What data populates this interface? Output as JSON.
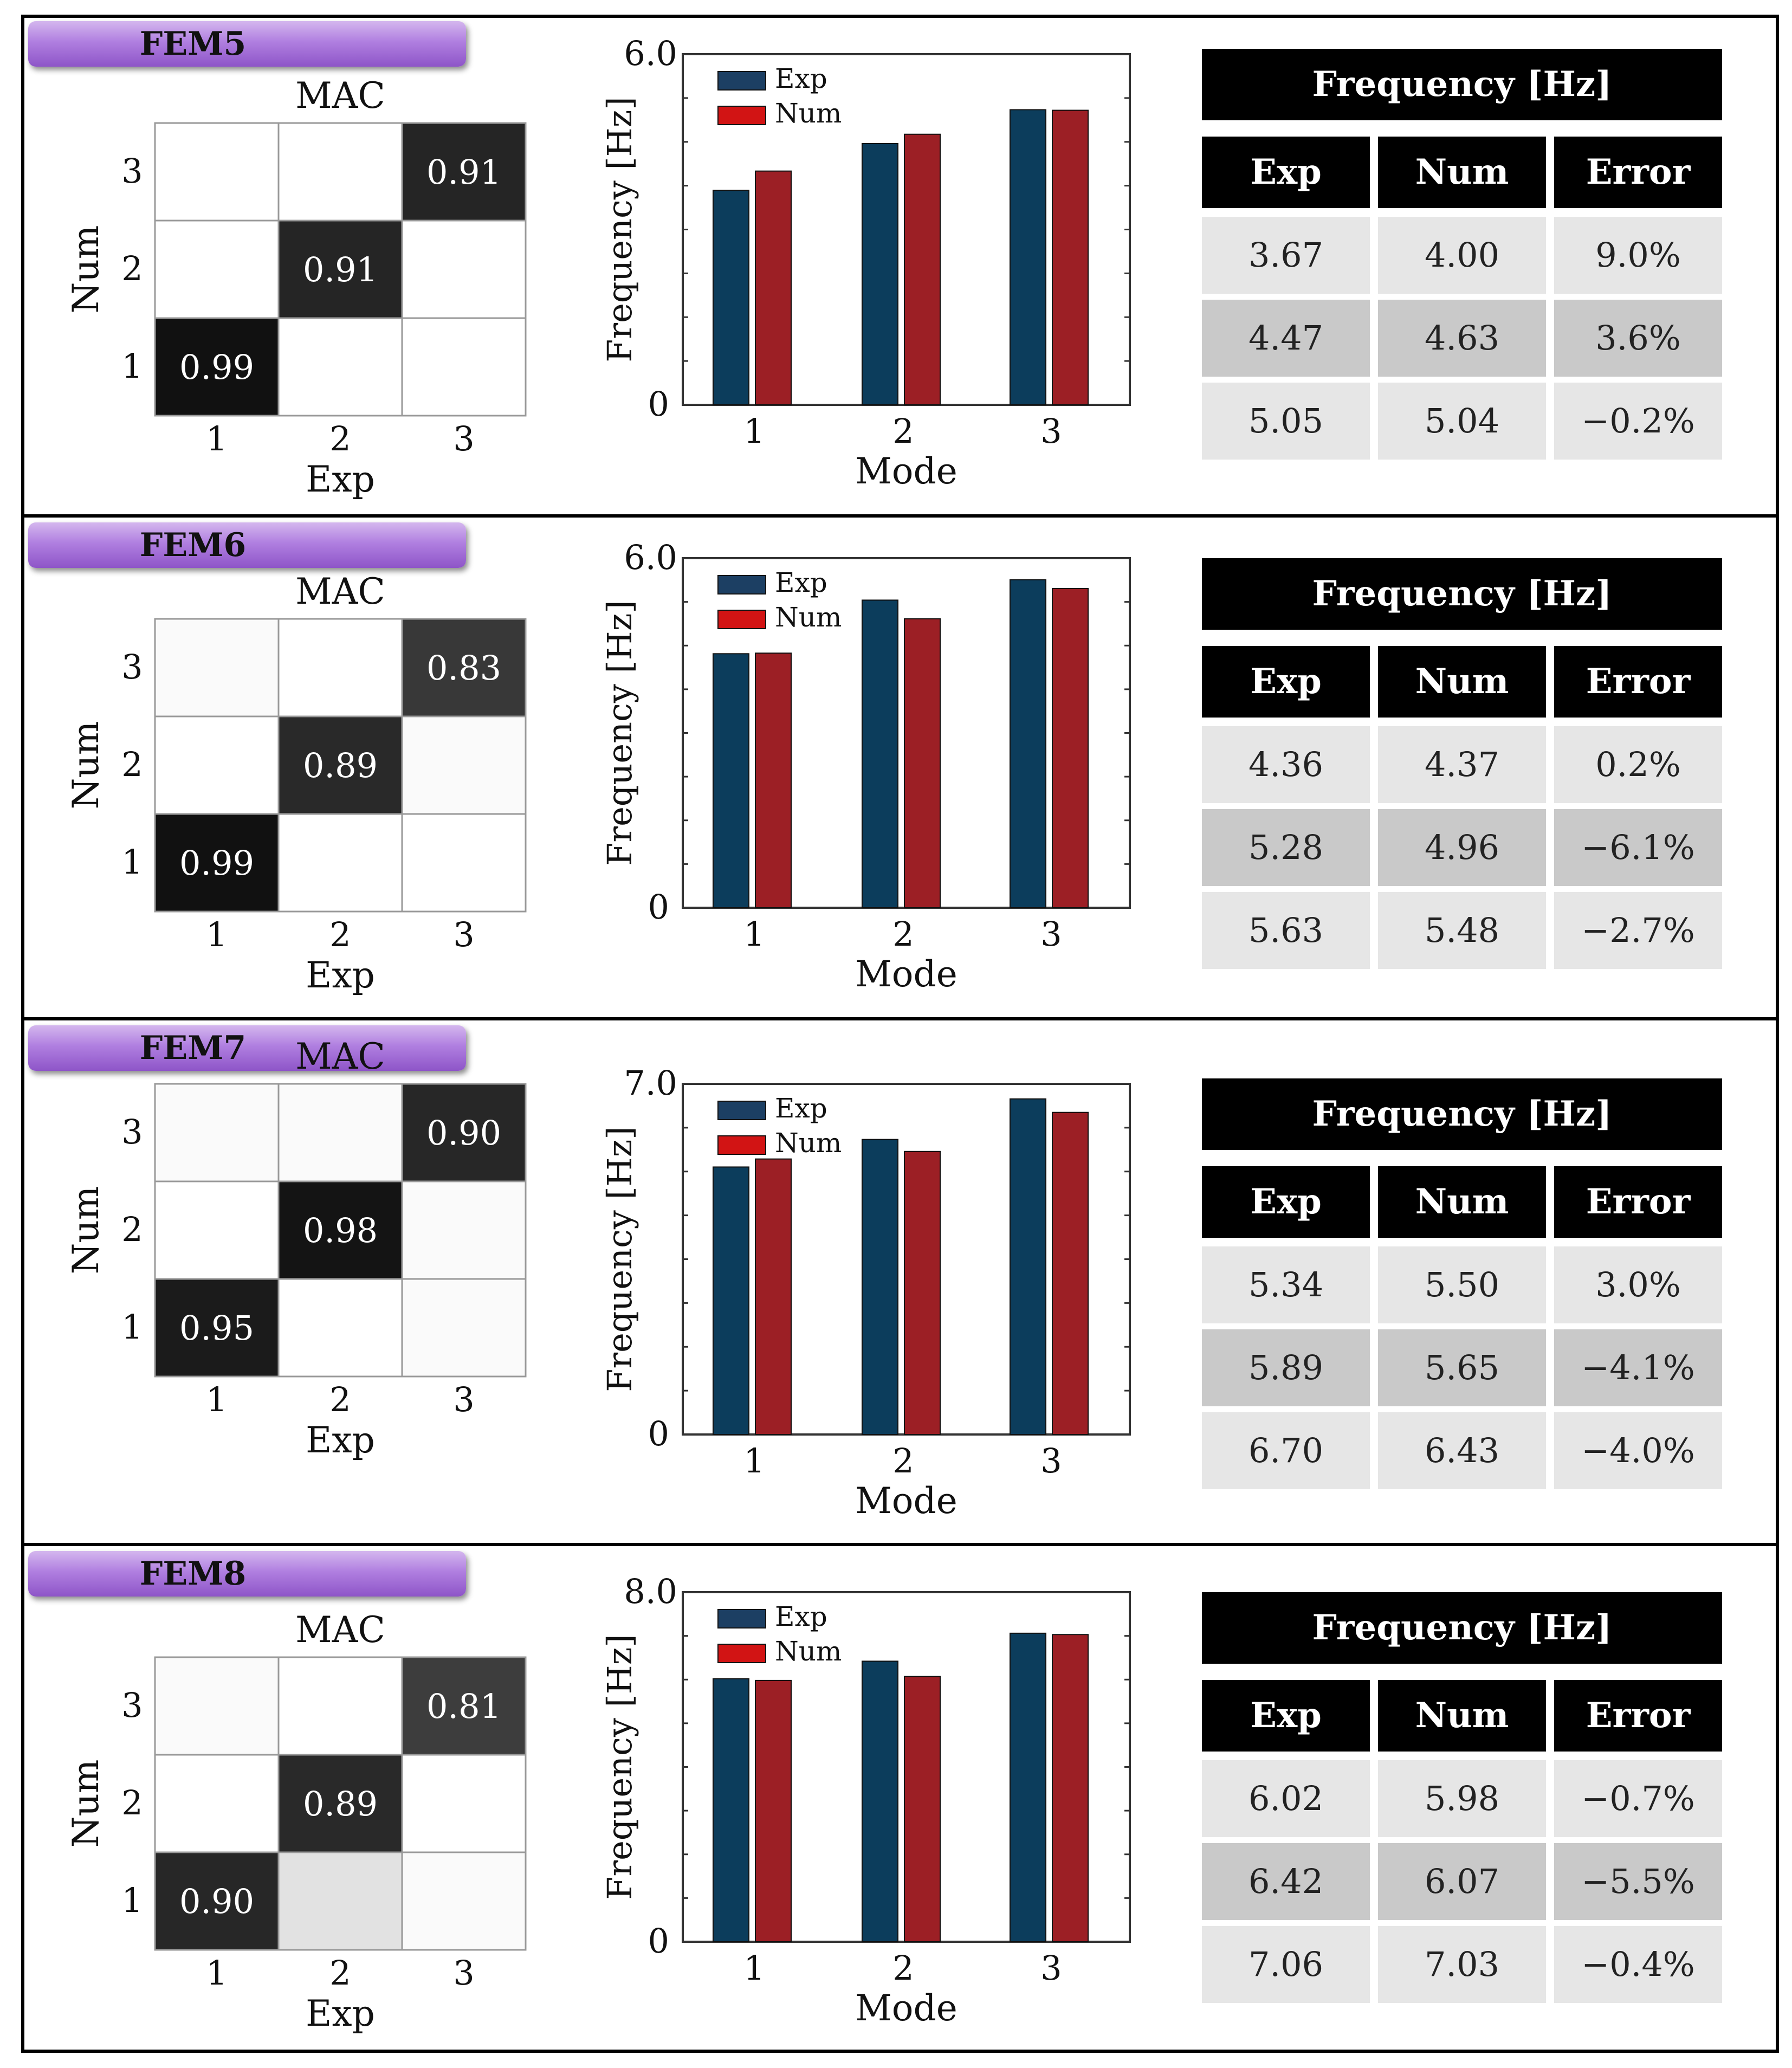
{
  "chart_data": [
    {
      "title": "FEM5",
      "mac": {
        "title": "MAC",
        "xlabel": "Exp",
        "ylabel": "Num",
        "ticks": [
          "1",
          "2",
          "3"
        ],
        "labels": [
          [
            "0.99",
            "",
            ""
          ],
          [
            "",
            "0.91",
            ""
          ],
          [
            "",
            "",
            "0.91"
          ]
        ],
        "values": [
          [
            0.99,
            0.0,
            0.0
          ],
          [
            0.0,
            0.91,
            0.0
          ],
          [
            0.0,
            0.0,
            0.91
          ]
        ]
      },
      "bar": {
        "type": "bar",
        "categories": [
          "1",
          "2",
          "3"
        ],
        "xlabel": "Mode",
        "ylabel": "Frequency [Hz]",
        "ylim": [
          0,
          6.0
        ],
        "ytick_labels": [
          "0",
          "6.0"
        ],
        "series": [
          {
            "name": "Exp",
            "values": [
              3.67,
              4.47,
              5.05
            ]
          },
          {
            "name": "Num",
            "values": [
              4.0,
              4.63,
              5.04
            ]
          }
        ]
      },
      "table": {
        "header": "Frequency [Hz]",
        "columns": [
          "Exp",
          "Num",
          "Error"
        ],
        "rows": [
          [
            "3.67",
            "4.00",
            "9.0%"
          ],
          [
            "4.47",
            "4.63",
            "3.6%"
          ],
          [
            "5.05",
            "5.04",
            "−0.2%"
          ]
        ]
      }
    },
    {
      "title": "FEM6",
      "mac": {
        "title": "MAC",
        "xlabel": "Exp",
        "ylabel": "Num",
        "ticks": [
          "1",
          "2",
          "3"
        ],
        "labels": [
          [
            "0.99",
            "",
            ""
          ],
          [
            "",
            "0.89",
            ""
          ],
          [
            "",
            "",
            "0.83"
          ]
        ],
        "values": [
          [
            0.99,
            0.0,
            0.0
          ],
          [
            0.0,
            0.89,
            0.02
          ],
          [
            0.02,
            0.0,
            0.83
          ]
        ]
      },
      "bar": {
        "type": "bar",
        "categories": [
          "1",
          "2",
          "3"
        ],
        "xlabel": "Mode",
        "ylabel": "Frequency [Hz]",
        "ylim": [
          0,
          6.0
        ],
        "ytick_labels": [
          "0",
          "6.0"
        ],
        "series": [
          {
            "name": "Exp",
            "values": [
              4.36,
              5.28,
              5.63
            ]
          },
          {
            "name": "Num",
            "values": [
              4.37,
              4.96,
              5.48
            ]
          }
        ]
      },
      "table": {
        "header": "Frequency [Hz]",
        "columns": [
          "Exp",
          "Num",
          "Error"
        ],
        "rows": [
          [
            "4.36",
            "4.37",
            "0.2%"
          ],
          [
            "5.28",
            "4.96",
            "−6.1%"
          ],
          [
            "5.63",
            "5.48",
            "−2.7%"
          ]
        ]
      }
    },
    {
      "title": "FEM7",
      "mac": {
        "title": "MAC",
        "xlabel": "Exp",
        "ylabel": "Num",
        "ticks": [
          "1",
          "2",
          "3"
        ],
        "labels": [
          [
            "0.95",
            "",
            ""
          ],
          [
            "",
            "0.98",
            ""
          ],
          [
            "",
            "",
            "0.90"
          ]
        ],
        "values": [
          [
            0.95,
            0.0,
            0.02
          ],
          [
            0.0,
            0.98,
            0.02
          ],
          [
            0.02,
            0.02,
            0.9
          ]
        ]
      },
      "bar": {
        "type": "bar",
        "categories": [
          "1",
          "2",
          "3"
        ],
        "xlabel": "Mode",
        "ylabel": "Frequency [Hz]",
        "ylim": [
          0,
          7.0
        ],
        "ytick_labels": [
          "0",
          "7.0"
        ],
        "series": [
          {
            "name": "Exp",
            "values": [
              5.34,
              5.89,
              6.7
            ]
          },
          {
            "name": "Num",
            "values": [
              5.5,
              5.65,
              6.43
            ]
          }
        ]
      },
      "table": {
        "header": "Frequency [Hz]",
        "columns": [
          "Exp",
          "Num",
          "Error"
        ],
        "rows": [
          [
            "5.34",
            "5.50",
            "3.0%"
          ],
          [
            "5.89",
            "5.65",
            "−4.1%"
          ],
          [
            "6.70",
            "6.43",
            "−4.0%"
          ]
        ]
      }
    },
    {
      "title": "FEM8",
      "mac": {
        "title": "MAC",
        "xlabel": "Exp",
        "ylabel": "Num",
        "ticks": [
          "1",
          "2",
          "3"
        ],
        "labels": [
          [
            "0.90",
            "",
            ""
          ],
          [
            "",
            "0.89",
            ""
          ],
          [
            "",
            "",
            "0.81"
          ]
        ],
        "values": [
          [
            0.9,
            0.12,
            0.02
          ],
          [
            0.0,
            0.89,
            0.0
          ],
          [
            0.02,
            0.0,
            0.81
          ]
        ]
      },
      "bar": {
        "type": "bar",
        "categories": [
          "1",
          "2",
          "3"
        ],
        "xlabel": "Mode",
        "ylabel": "Frequency [Hz]",
        "ylim": [
          0,
          8.0
        ],
        "ytick_labels": [
          "0",
          "8.0"
        ],
        "series": [
          {
            "name": "Exp",
            "values": [
              6.02,
              6.42,
              7.06
            ]
          },
          {
            "name": "Num",
            "values": [
              5.98,
              6.07,
              7.03
            ]
          }
        ]
      },
      "table": {
        "header": "Frequency [Hz]",
        "columns": [
          "Exp",
          "Num",
          "Error"
        ],
        "rows": [
          [
            "6.02",
            "5.98",
            "−0.7%"
          ],
          [
            "6.42",
            "6.07",
            "−5.5%"
          ],
          [
            "7.06",
            "7.03",
            "−0.4%"
          ]
        ]
      }
    }
  ],
  "colors": {
    "exp": "#0c3d5c",
    "num": "#9c1f25",
    "legend_exp": "#1c3f63",
    "legend_num": "#d21414",
    "tag": "#a673d6",
    "row_light": "#e6e6e6",
    "row_dark": "#c9c9c9"
  }
}
